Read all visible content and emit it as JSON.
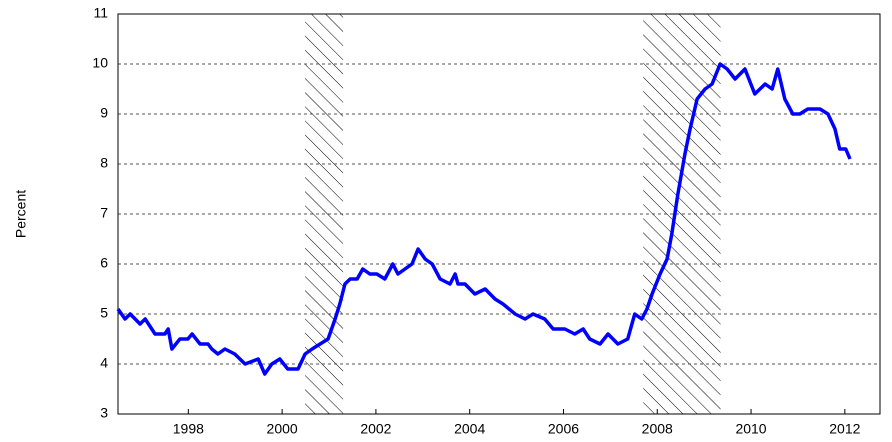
{
  "chart_data": {
    "type": "line",
    "y_label": "Percent",
    "x": [
      1996.5,
      1996.65,
      1996.76,
      1996.97,
      1997.08,
      1997.29,
      1997.5,
      1997.57,
      1997.65,
      1997.82,
      1997.99,
      1998.08,
      1998.25,
      1998.42,
      1998.5,
      1998.63,
      1998.78,
      1998.99,
      1999.21,
      1999.49,
      1999.63,
      1999.78,
      1999.95,
      2000.12,
      2000.34,
      2000.49,
      2000.64,
      2000.81,
      2000.98,
      2001.13,
      2001.23,
      2001.34,
      2001.45,
      2001.6,
      2001.72,
      2001.87,
      2002.02,
      2002.19,
      2002.36,
      2002.47,
      2002.62,
      2002.77,
      2002.9,
      2003.05,
      2003.2,
      2003.37,
      2003.58,
      2003.69,
      2003.75,
      2003.9,
      2004.11,
      2004.33,
      2004.54,
      2004.71,
      2004.97,
      2005.18,
      2005.35,
      2005.6,
      2005.78,
      2006.03,
      2006.24,
      2006.42,
      2006.56,
      2006.78,
      2006.95,
      2007.16,
      2007.37,
      2007.52,
      2007.67,
      2007.78,
      2007.89,
      2008.06,
      2008.21,
      2008.31,
      2008.44,
      2008.59,
      2008.7,
      2008.85,
      2009.02,
      2009.17,
      2009.34,
      2009.49,
      2009.66,
      2009.87,
      2010.08,
      2010.3,
      2010.45,
      2010.57,
      2010.72,
      2010.89,
      2011.04,
      2011.21,
      2011.47,
      2011.64,
      2011.79,
      2011.89,
      2012.02,
      2012.11
    ],
    "series": [
      {
        "color": "#0000ff",
        "values": [
          5.1,
          4.9,
          5.0,
          4.8,
          4.9,
          4.6,
          4.6,
          4.7,
          4.3,
          4.5,
          4.5,
          4.6,
          4.4,
          4.4,
          4.3,
          4.2,
          4.3,
          4.2,
          4.0,
          4.1,
          3.8,
          4.0,
          4.1,
          3.9,
          3.9,
          4.2,
          4.3,
          4.4,
          4.5,
          4.9,
          5.2,
          5.6,
          5.7,
          5.7,
          5.9,
          5.8,
          5.8,
          5.7,
          6.0,
          5.8,
          5.9,
          6.0,
          6.3,
          6.1,
          6.0,
          5.7,
          5.6,
          5.8,
          5.6,
          5.6,
          5.4,
          5.5,
          5.3,
          5.2,
          5.0,
          4.9,
          5.0,
          4.9,
          4.7,
          4.7,
          4.6,
          4.7,
          4.5,
          4.4,
          4.6,
          4.4,
          4.5,
          5.0,
          4.9,
          5.1,
          5.4,
          5.8,
          6.1,
          6.6,
          7.4,
          8.2,
          8.7,
          9.3,
          9.5,
          9.6,
          10.0,
          9.9,
          9.7,
          9.9,
          9.4,
          9.6,
          9.5,
          9.9,
          9.3,
          9.0,
          9.0,
          9.1,
          9.1,
          9.0,
          8.7,
          8.3,
          8.3,
          8.1
        ]
      }
    ],
    "recessions": [
      [
        2000.49,
        2001.3
      ],
      [
        2007.7,
        2009.35
      ]
    ],
    "xlim": [
      1996.5,
      2012.75
    ],
    "xticks": [
      1998,
      2000,
      2002,
      2004,
      2006,
      2008,
      2010,
      2012
    ],
    "ylim": [
      3,
      11
    ],
    "yticks": [
      3,
      4,
      5,
      6,
      7,
      8,
      9,
      10,
      11
    ],
    "grid": true
  }
}
